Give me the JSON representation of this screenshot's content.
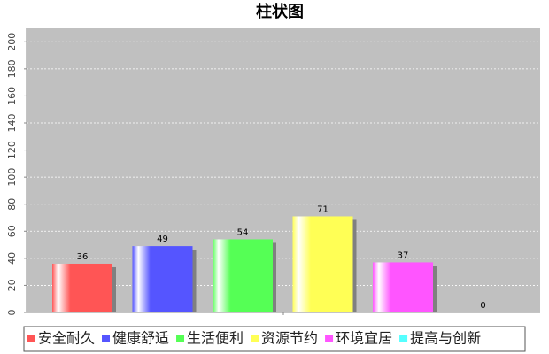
{
  "chart_data": {
    "type": "bar",
    "title": "柱状图",
    "series": [
      {
        "name": "安全耐久",
        "color": "#ff5555",
        "values": [
          36
        ]
      },
      {
        "name": "健康舒适",
        "color": "#5555ff",
        "values": [
          49
        ]
      },
      {
        "name": "生活便利",
        "color": "#55ff55",
        "values": [
          54
        ]
      },
      {
        "name": "资源节约",
        "color": "#ffff55",
        "values": [
          71
        ]
      },
      {
        "name": "环境宜居",
        "color": "#ff55ff",
        "values": [
          37
        ]
      },
      {
        "name": "提高与创新",
        "color": "#55ffff",
        "values": [
          0
        ]
      }
    ],
    "ylim": [
      0,
      210
    ],
    "yticks": [
      0,
      20,
      40,
      60,
      80,
      100,
      120,
      140,
      160,
      180,
      200
    ],
    "grid": true
  }
}
